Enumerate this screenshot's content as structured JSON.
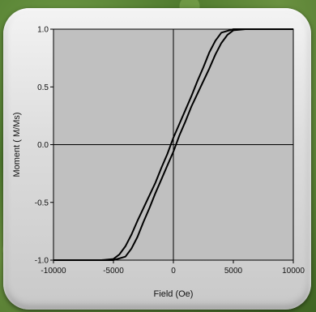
{
  "chart_data": {
    "type": "line",
    "xlabel": "Field (Oe)",
    "ylabel": "Moment ( M/Ms)",
    "xlim": [
      -10000,
      10000
    ],
    "ylim": [
      -1.0,
      1.0
    ],
    "x_ticks": [
      -10000,
      -5000,
      0,
      5000,
      10000
    ],
    "x_tick_labels": [
      "-10000",
      "-5000",
      "0",
      "5000",
      "10000"
    ],
    "y_ticks": [
      -1.0,
      -0.5,
      0.0,
      0.5,
      1.0
    ],
    "y_tick_labels": [
      "-1.0",
      "-0.5",
      "0.0",
      "0.5",
      "1.0"
    ],
    "grid": false,
    "series": [
      {
        "x": [
          -10000,
          -8000,
          -6000,
          -5000,
          -4500,
          -4000,
          -3500,
          -3000,
          -2500,
          -2000,
          -1500,
          -1000,
          -500,
          0,
          500,
          1000,
          1500,
          2000,
          2500,
          3000,
          3500,
          4000,
          5000,
          6000,
          8000,
          10000
        ],
        "y": [
          -1.0,
          -1.0,
          -1.0,
          -0.99,
          -0.95,
          -0.88,
          -0.78,
          -0.66,
          -0.55,
          -0.44,
          -0.33,
          -0.2,
          -0.08,
          0.06,
          0.18,
          0.3,
          0.42,
          0.55,
          0.67,
          0.8,
          0.9,
          0.97,
          1.0,
          1.0,
          1.0,
          1.0
        ]
      },
      {
        "x": [
          10000,
          8000,
          6000,
          5000,
          4500,
          4000,
          3500,
          3000,
          2500,
          2000,
          1500,
          1000,
          500,
          0,
          -500,
          -1000,
          -1500,
          -2000,
          -2500,
          -3000,
          -3500,
          -4000,
          -5000,
          -6000,
          -8000,
          -10000
        ],
        "y": [
          1.0,
          1.0,
          1.0,
          0.99,
          0.95,
          0.88,
          0.78,
          0.66,
          0.55,
          0.44,
          0.33,
          0.2,
          0.08,
          -0.06,
          -0.18,
          -0.3,
          -0.42,
          -0.55,
          -0.67,
          -0.8,
          -0.9,
          -0.97,
          -1.0,
          -1.0,
          -1.0,
          -1.0
        ]
      }
    ]
  }
}
